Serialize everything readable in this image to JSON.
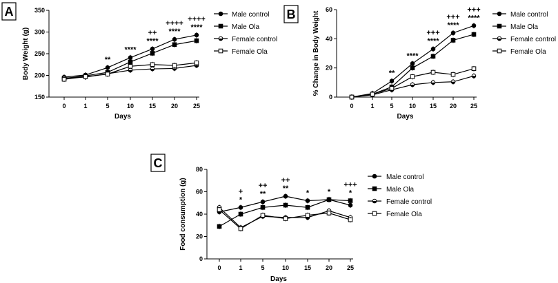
{
  "chart_data": [
    {
      "type": "line",
      "panel": "A",
      "title": "",
      "xlabel": "Days",
      "ylabel": "Body Weight (g)",
      "x": [
        0,
        1,
        5,
        10,
        15,
        20,
        25
      ],
      "x_tick_labels": [
        "0",
        "1",
        "5",
        "10",
        "15",
        "20",
        "25"
      ],
      "ylim": [
        150,
        350
      ],
      "y_ticks": [
        150,
        200,
        250,
        300,
        350
      ],
      "series": [
        {
          "name": "Male control",
          "marker": "filled-circle",
          "values": [
            196,
            201,
            218,
            241,
            261,
            283,
            293
          ]
        },
        {
          "name": "Male Ola",
          "marker": "filled-square",
          "values": [
            193,
            199,
            207,
            231,
            251,
            271,
            280
          ]
        },
        {
          "name": "Female control",
          "marker": "half-circle",
          "values": [
            194,
            196,
            204,
            212,
            215,
            216,
            223
          ]
        },
        {
          "name": "Female Ola",
          "marker": "open-square",
          "values": [
            191,
            197,
            203,
            221,
            225,
            223,
            229
          ]
        }
      ],
      "annotations": [
        {
          "x": 5,
          "lines": [
            "**"
          ]
        },
        {
          "x": 10,
          "lines": [
            "****"
          ]
        },
        {
          "x": 15,
          "lines": [
            "++",
            "****"
          ]
        },
        {
          "x": 20,
          "lines": [
            "++++",
            "****"
          ]
        },
        {
          "x": 25,
          "lines": [
            "++++",
            "****"
          ]
        }
      ]
    },
    {
      "type": "line",
      "panel": "B",
      "title": "",
      "xlabel": "Days",
      "ylabel": "% Change in Body Weight",
      "x": [
        0,
        1,
        5,
        10,
        15,
        20,
        25
      ],
      "x_tick_labels": [
        "0",
        "1",
        "5",
        "10",
        "15",
        "20",
        "25"
      ],
      "ylim": [
        0,
        60
      ],
      "y_ticks": [
        0,
        20,
        40,
        60
      ],
      "series": [
        {
          "name": "Male control",
          "marker": "filled-circle",
          "values": [
            0,
            2.5,
            11,
            23,
            33,
            44,
            49
          ]
        },
        {
          "name": "Male Ola",
          "marker": "filled-square",
          "values": [
            0,
            2,
            7,
            20,
            28,
            39,
            43
          ]
        },
        {
          "name": "Female control",
          "marker": "half-circle",
          "values": [
            0,
            1.5,
            5,
            8.5,
            10,
            10.5,
            14.5
          ]
        },
        {
          "name": "Female Ola",
          "marker": "open-square",
          "values": [
            0,
            2,
            6,
            14,
            17,
            15.5,
            19.5
          ]
        }
      ],
      "annotations": [
        {
          "x": 5,
          "lines": [
            "**"
          ]
        },
        {
          "x": 10,
          "lines": [
            "****"
          ]
        },
        {
          "x": 15,
          "lines": [
            "+++",
            "****"
          ]
        },
        {
          "x": 20,
          "lines": [
            "+++",
            "****"
          ]
        },
        {
          "x": 25,
          "lines": [
            "+++",
            "****"
          ]
        }
      ]
    },
    {
      "type": "line",
      "panel": "C",
      "title": "",
      "xlabel": "Days",
      "ylabel": "Food consumption (g)",
      "x": [
        0,
        1,
        5,
        10,
        15,
        20,
        25
      ],
      "x_tick_labels": [
        "0",
        "1",
        "5",
        "10",
        "15",
        "20",
        "25"
      ],
      "ylim": [
        0,
        80
      ],
      "y_ticks": [
        0,
        20,
        40,
        60,
        80
      ],
      "series": [
        {
          "name": "Male control",
          "marker": "filled-circle",
          "values": [
            42,
            46,
            51,
            56,
            52,
            53,
            48
          ]
        },
        {
          "name": "Male Ola",
          "marker": "filled-square",
          "values": [
            29,
            40,
            46,
            48,
            46,
            53,
            52
          ]
        },
        {
          "name": "Female control",
          "marker": "half-circle",
          "values": [
            46,
            28,
            38,
            37,
            37,
            43,
            37
          ]
        },
        {
          "name": "Female Ola",
          "marker": "open-square",
          "values": [
            44,
            27,
            39,
            36,
            39,
            41,
            35
          ]
        }
      ],
      "annotations": [
        {
          "x": 1,
          "lines": [
            "+",
            "*"
          ]
        },
        {
          "x": 5,
          "lines": [
            "++",
            "**"
          ]
        },
        {
          "x": 10,
          "lines": [
            "++",
            "**"
          ]
        },
        {
          "x": 15,
          "lines": [
            "*"
          ]
        },
        {
          "x": 20,
          "lines": [
            "*"
          ]
        },
        {
          "x": 25,
          "lines": [
            "+++",
            "*"
          ]
        }
      ]
    }
  ]
}
